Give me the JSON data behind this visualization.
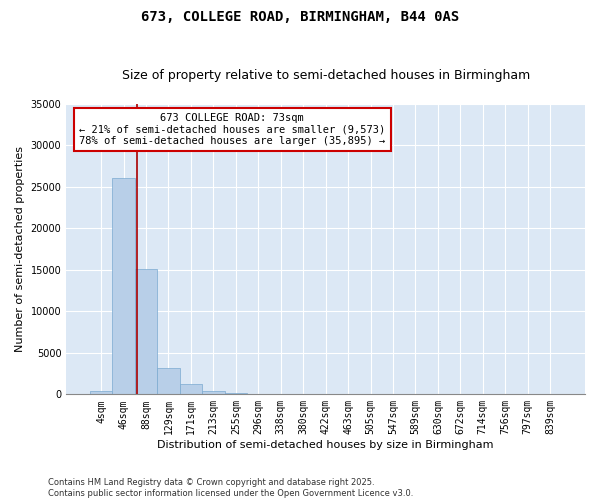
{
  "title": "673, COLLEGE ROAD, BIRMINGHAM, B44 0AS",
  "subtitle": "Size of property relative to semi-detached houses in Birmingham",
  "xlabel": "Distribution of semi-detached houses by size in Birmingham",
  "ylabel": "Number of semi-detached properties",
  "categories": [
    "4sqm",
    "46sqm",
    "88sqm",
    "129sqm",
    "171sqm",
    "213sqm",
    "255sqm",
    "296sqm",
    "338sqm",
    "380sqm",
    "422sqm",
    "463sqm",
    "505sqm",
    "547sqm",
    "589sqm",
    "630sqm",
    "672sqm",
    "714sqm",
    "756sqm",
    "797sqm",
    "839sqm"
  ],
  "values": [
    350,
    26100,
    15100,
    3200,
    1200,
    450,
    200,
    100,
    0,
    0,
    0,
    0,
    0,
    0,
    0,
    0,
    0,
    0,
    0,
    0,
    0
  ],
  "bar_color": "#b8cfe8",
  "bar_edge_color": "#7aaad0",
  "property_line_x": 1.62,
  "property_label": "673 COLLEGE ROAD: 73sqm",
  "pct_smaller": "21%",
  "pct_larger": "78%",
  "n_smaller": "9,573",
  "n_larger": "35,895",
  "line_color": "#aa0000",
  "annotation_box_color": "#cc0000",
  "ylim": [
    0,
    35000
  ],
  "yticks": [
    0,
    5000,
    10000,
    15000,
    20000,
    25000,
    30000,
    35000
  ],
  "bg_color": "#dce8f5",
  "footnote": "Contains HM Land Registry data © Crown copyright and database right 2025.\nContains public sector information licensed under the Open Government Licence v3.0.",
  "title_fontsize": 10,
  "subtitle_fontsize": 9,
  "axis_label_fontsize": 8,
  "tick_fontsize": 7,
  "annotation_fontsize": 7.5
}
